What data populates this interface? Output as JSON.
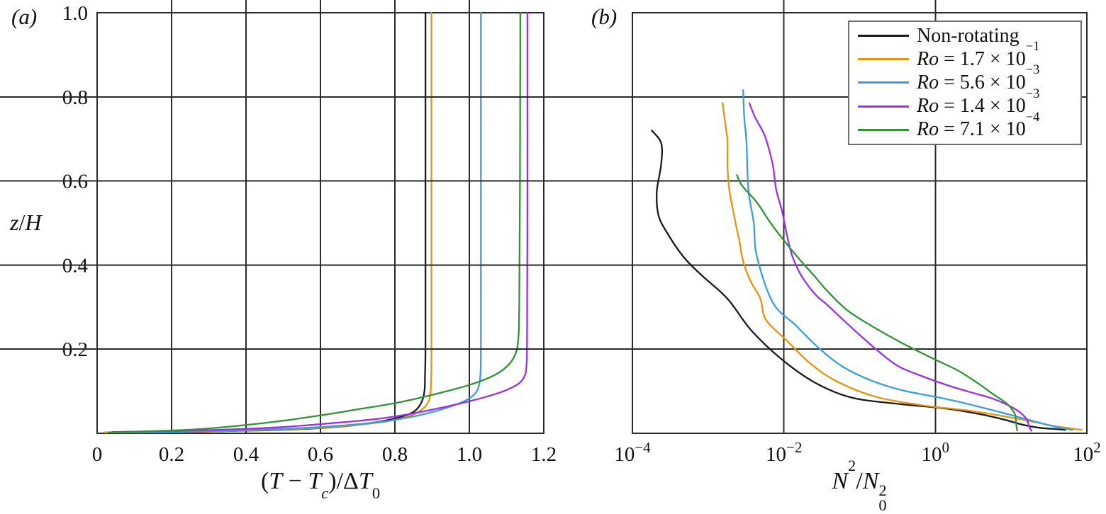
{
  "figure": {
    "panel_a_label": "(a)",
    "panel_b_label": "(b)",
    "colors": {
      "black": "#1a1a1a",
      "orange": "#e8930e",
      "blue": "#3a9de0",
      "purple": "#9a30e8",
      "green": "#2e9434",
      "axis": "#2b2b2b",
      "legend_border": "#6e6e6e"
    }
  },
  "legend": {
    "position": "top-right",
    "entries": [
      {
        "label": "Non-rotating",
        "color": "#1a1a1a",
        "rich": [
          {
            "t": "Non-rotating"
          }
        ]
      },
      {
        "label": "Ro = 1.7 × 10⁻¹",
        "color": "#e8930e",
        "rich": [
          {
            "t": "Ro",
            "i": 1
          },
          {
            "t": " = 1.7 × 10"
          },
          {
            "t": "−1",
            "sup": 1
          }
        ]
      },
      {
        "label": "Ro = 5.6 × 10⁻³",
        "color": "#3a9de0",
        "rich": [
          {
            "t": "Ro",
            "i": 1
          },
          {
            "t": " = 5.6 × 10"
          },
          {
            "t": "−3",
            "sup": 1
          }
        ]
      },
      {
        "label": "Ro = 1.4 × 10⁻³",
        "color": "#9a30e8",
        "rich": [
          {
            "t": "Ro",
            "i": 1
          },
          {
            "t": " = 1.4 × 10"
          },
          {
            "t": "−3",
            "sup": 1
          }
        ]
      },
      {
        "label": "Ro = 7.1 × 10⁻⁴",
        "color": "#2e9434",
        "rich": [
          {
            "t": "Ro",
            "i": 1
          },
          {
            "t": " = 7.1 × 10"
          },
          {
            "t": "−4",
            "sup": 1
          }
        ]
      }
    ]
  },
  "chart_data": [
    {
      "id": "a",
      "type": "line",
      "xlabel": "(T − Tc)/ΔT0",
      "xlabel_rich": [
        {
          "t": "("
        },
        {
          "t": "T",
          "i": 1
        },
        {
          "t": " − "
        },
        {
          "t": "T",
          "i": 1
        },
        {
          "t": "c",
          "sub": 1,
          "i": 1
        },
        {
          "t": ")/Δ"
        },
        {
          "t": "T",
          "i": 1
        },
        {
          "t": "0",
          "sub": 1
        }
      ],
      "ylabel": "z/H",
      "ylabel_rich": [
        {
          "t": "z",
          "i": 1
        },
        {
          "t": "/"
        },
        {
          "t": "H",
          "i": 1
        }
      ],
      "xscale": "linear",
      "xlim": [
        0,
        1.2
      ],
      "ylim": [
        0,
        1.0
      ],
      "grid": false,
      "xticks": [
        {
          "v": 0,
          "label": "0"
        },
        {
          "v": 0.2,
          "label": "0.2"
        },
        {
          "v": 0.4,
          "label": "0.4"
        },
        {
          "v": 0.6,
          "label": "0.6"
        },
        {
          "v": 0.8,
          "label": "0.8"
        },
        {
          "v": 1.0,
          "label": "1.0"
        },
        {
          "v": 1.2,
          "label": "1.2"
        }
      ],
      "yticks": [
        {
          "v": 0.2,
          "label": "0.2"
        },
        {
          "v": 0.4,
          "label": "0.4"
        },
        {
          "v": 0.6,
          "label": "0.6"
        },
        {
          "v": 0.8,
          "label": "0.8"
        },
        {
          "v": 1.0,
          "label": "1.0"
        }
      ],
      "series": [
        {
          "name": "Non-rotating",
          "color": "#1a1a1a",
          "points": [
            [
              0.02,
              0.002
            ],
            [
              0.2,
              0.003
            ],
            [
              0.4,
              0.006
            ],
            [
              0.55,
              0.01
            ],
            [
              0.68,
              0.018
            ],
            [
              0.76,
              0.028
            ],
            [
              0.82,
              0.04
            ],
            [
              0.852,
              0.052
            ],
            [
              0.868,
              0.068
            ],
            [
              0.876,
              0.085
            ],
            [
              0.88,
              0.105
            ],
            [
              0.881,
              0.14
            ],
            [
              0.882,
              0.2
            ],
            [
              0.882,
              0.4
            ],
            [
              0.882,
              0.7
            ],
            [
              0.882,
              1.0
            ]
          ]
        },
        {
          "name": "Ro = 1.7 × 10⁻¹",
          "color": "#e8930e",
          "points": [
            [
              0.02,
              0.002
            ],
            [
              0.22,
              0.003
            ],
            [
              0.42,
              0.007
            ],
            [
              0.58,
              0.012
            ],
            [
              0.7,
              0.02
            ],
            [
              0.79,
              0.03
            ],
            [
              0.845,
              0.043
            ],
            [
              0.872,
              0.056
            ],
            [
              0.888,
              0.072
            ],
            [
              0.895,
              0.09
            ],
            [
              0.897,
              0.12
            ],
            [
              0.898,
              0.18
            ],
            [
              0.898,
              0.5
            ],
            [
              0.898,
              1.0
            ]
          ]
        },
        {
          "name": "Ro = 5.6 × 10⁻³",
          "color": "#3a9de0",
          "points": [
            [
              0.03,
              0.002
            ],
            [
              0.25,
              0.004
            ],
            [
              0.45,
              0.009
            ],
            [
              0.62,
              0.016
            ],
            [
              0.74,
              0.025
            ],
            [
              0.82,
              0.035
            ],
            [
              0.88,
              0.046
            ],
            [
              0.93,
              0.058
            ],
            [
              0.975,
              0.072
            ],
            [
              1.005,
              0.086
            ],
            [
              1.02,
              0.1
            ],
            [
              1.027,
              0.118
            ],
            [
              1.03,
              0.145
            ],
            [
              1.031,
              0.2
            ],
            [
              1.031,
              0.5
            ],
            [
              1.031,
              1.0
            ]
          ]
        },
        {
          "name": "Ro = 1.4 × 10⁻³",
          "color": "#9a30e8",
          "points": [
            [
              0.04,
              0.003
            ],
            [
              0.28,
              0.007
            ],
            [
              0.48,
              0.014
            ],
            [
              0.63,
              0.024
            ],
            [
              0.75,
              0.034
            ],
            [
              0.84,
              0.046
            ],
            [
              0.92,
              0.06
            ],
            [
              0.99,
              0.074
            ],
            [
              1.05,
              0.088
            ],
            [
              1.1,
              0.103
            ],
            [
              1.135,
              0.12
            ],
            [
              1.15,
              0.14
            ],
            [
              1.154,
              0.17
            ],
            [
              1.155,
              0.22
            ],
            [
              1.156,
              0.5
            ],
            [
              1.156,
              1.0
            ]
          ]
        },
        {
          "name": "Ro = 7.1 × 10⁻⁴",
          "color": "#2e9434",
          "points": [
            [
              0.03,
              0.002
            ],
            [
              0.24,
              0.008
            ],
            [
              0.38,
              0.018
            ],
            [
              0.5,
              0.03
            ],
            [
              0.61,
              0.044
            ],
            [
              0.7,
              0.057
            ],
            [
              0.79,
              0.07
            ],
            [
              0.86,
              0.083
            ],
            [
              0.93,
              0.098
            ],
            [
              1.0,
              0.115
            ],
            [
              1.06,
              0.135
            ],
            [
              1.1,
              0.158
            ],
            [
              1.122,
              0.185
            ],
            [
              1.131,
              0.22
            ],
            [
              1.134,
              0.3
            ],
            [
              1.136,
              0.6
            ],
            [
              1.137,
              1.0
            ]
          ]
        }
      ]
    },
    {
      "id": "b",
      "type": "line",
      "xlabel": "N²/N0²",
      "xlabel_rich": [
        {
          "t": "N",
          "i": 1
        },
        {
          "t": "2",
          "sup": 1
        },
        {
          "t": "/"
        },
        {
          "t": "N",
          "i": 1
        },
        {
          "stack": {
            "sup": "2",
            "sub": "0"
          }
        }
      ],
      "ylabel": "",
      "xscale": "log",
      "xlim": [
        0.0001,
        100
      ],
      "ylim": [
        0,
        1.0
      ],
      "grid": false,
      "xticks": [
        {
          "exp": -4,
          "label": "10⁻⁴"
        },
        {
          "exp": -2,
          "label": "10⁻²"
        },
        {
          "exp": 0,
          "label": "10⁰"
        },
        {
          "exp": 2,
          "label": "10²"
        }
      ],
      "yticks": [
        {
          "v": 0.2,
          "label": ""
        },
        {
          "v": 0.4,
          "label": ""
        },
        {
          "v": 0.6,
          "label": ""
        },
        {
          "v": 0.8,
          "label": ""
        },
        {
          "v": 1.0,
          "label": ""
        }
      ],
      "series": [
        {
          "name": "Non-rotating",
          "color": "#1a1a1a",
          "points": [
            [
              0.00018,
              0.72
            ],
            [
              0.00024,
              0.69
            ],
            [
              0.00024,
              0.64
            ],
            [
              0.00021,
              0.575
            ],
            [
              0.00022,
              0.52
            ],
            [
              0.00028,
              0.48
            ],
            [
              0.00047,
              0.42
            ],
            [
              0.00083,
              0.375
            ],
            [
              0.0018,
              0.32
            ],
            [
              0.0037,
              0.245
            ],
            [
              0.0095,
              0.175
            ],
            [
              0.026,
              0.12
            ],
            [
              0.078,
              0.085
            ],
            [
              0.32,
              0.07
            ],
            [
              1.35,
              0.059
            ],
            [
              4.0,
              0.045
            ],
            [
              8.3,
              0.032
            ],
            [
              14.5,
              0.02
            ],
            [
              24,
              0.013
            ],
            [
              40,
              0.01
            ],
            [
              52,
              0.008
            ]
          ]
        },
        {
          "name": "Ro = 1.7 × 10⁻¹",
          "color": "#e8930e",
          "points": [
            [
              0.00155,
              0.785
            ],
            [
              0.0017,
              0.73
            ],
            [
              0.0018,
              0.695
            ],
            [
              0.0018,
              0.64
            ],
            [
              0.0019,
              0.58
            ],
            [
              0.0023,
              0.5
            ],
            [
              0.0026,
              0.455
            ],
            [
              0.0028,
              0.42
            ],
            [
              0.0032,
              0.385
            ],
            [
              0.0038,
              0.355
            ],
            [
              0.0049,
              0.32
            ],
            [
              0.0058,
              0.27
            ],
            [
              0.011,
              0.22
            ],
            [
              0.021,
              0.17
            ],
            [
              0.047,
              0.126
            ],
            [
              0.155,
              0.088
            ],
            [
              0.65,
              0.067
            ],
            [
              2.75,
              0.054
            ],
            [
              8.3,
              0.04
            ],
            [
              16.6,
              0.03
            ],
            [
              35,
              0.018
            ],
            [
              60,
              0.012
            ],
            [
              85,
              0.008
            ]
          ]
        },
        {
          "name": "Ro = 5.6 × 10⁻³",
          "color": "#3a9de0",
          "points": [
            [
              0.0029,
              0.816
            ],
            [
              0.003,
              0.75
            ],
            [
              0.0032,
              0.695
            ],
            [
              0.0034,
              0.58
            ],
            [
              0.004,
              0.5
            ],
            [
              0.0044,
              0.42
            ],
            [
              0.0072,
              0.31
            ],
            [
              0.0145,
              0.256
            ],
            [
              0.028,
              0.205
            ],
            [
              0.058,
              0.16
            ],
            [
              0.14,
              0.126
            ],
            [
              0.37,
              0.102
            ],
            [
              1.35,
              0.082
            ],
            [
              4.0,
              0.062
            ],
            [
              11.7,
              0.04
            ],
            [
              24,
              0.025
            ],
            [
              40,
              0.015
            ],
            [
              65,
              0.008
            ]
          ]
        },
        {
          "name": "Ro = 1.4 × 10⁻³",
          "color": "#9a30e8",
          "points": [
            [
              0.0035,
              0.785
            ],
            [
              0.0042,
              0.75
            ],
            [
              0.0056,
              0.707
            ],
            [
              0.0071,
              0.64
            ],
            [
              0.0079,
              0.58
            ],
            [
              0.0095,
              0.527
            ],
            [
              0.011,
              0.47
            ],
            [
              0.013,
              0.42
            ],
            [
              0.017,
              0.375
            ],
            [
              0.026,
              0.33
            ],
            [
              0.036,
              0.308
            ],
            [
              0.058,
              0.273
            ],
            [
              0.1,
              0.234
            ],
            [
              0.18,
              0.194
            ],
            [
              0.32,
              0.16
            ],
            [
              0.62,
              0.138
            ],
            [
              1.35,
              0.116
            ],
            [
              2.75,
              0.099
            ],
            [
              5.8,
              0.082
            ],
            [
              11,
              0.059
            ],
            [
              15.5,
              0.037
            ],
            [
              17.4,
              0.015
            ],
            [
              18.6,
              0.006
            ]
          ]
        },
        {
          "name": "Ro = 7.1 × 10⁻⁴",
          "color": "#2e9434",
          "points": [
            [
              0.0024,
              0.614
            ],
            [
              0.0028,
              0.589
            ],
            [
              0.0044,
              0.549
            ],
            [
              0.0068,
              0.498
            ],
            [
              0.0105,
              0.454
            ],
            [
              0.016,
              0.414
            ],
            [
              0.025,
              0.375
            ],
            [
              0.038,
              0.337
            ],
            [
              0.066,
              0.295
            ],
            [
              0.11,
              0.268
            ],
            [
              0.22,
              0.236
            ],
            [
              0.46,
              0.205
            ],
            [
              0.95,
              0.177
            ],
            [
              1.95,
              0.15
            ],
            [
              3.5,
              0.121
            ],
            [
              5.8,
              0.093
            ],
            [
              8.7,
              0.071
            ],
            [
              11,
              0.049
            ],
            [
              11.5,
              0.035
            ],
            [
              11.7,
              0.02
            ],
            [
              12,
              0.007
            ]
          ]
        }
      ]
    }
  ]
}
